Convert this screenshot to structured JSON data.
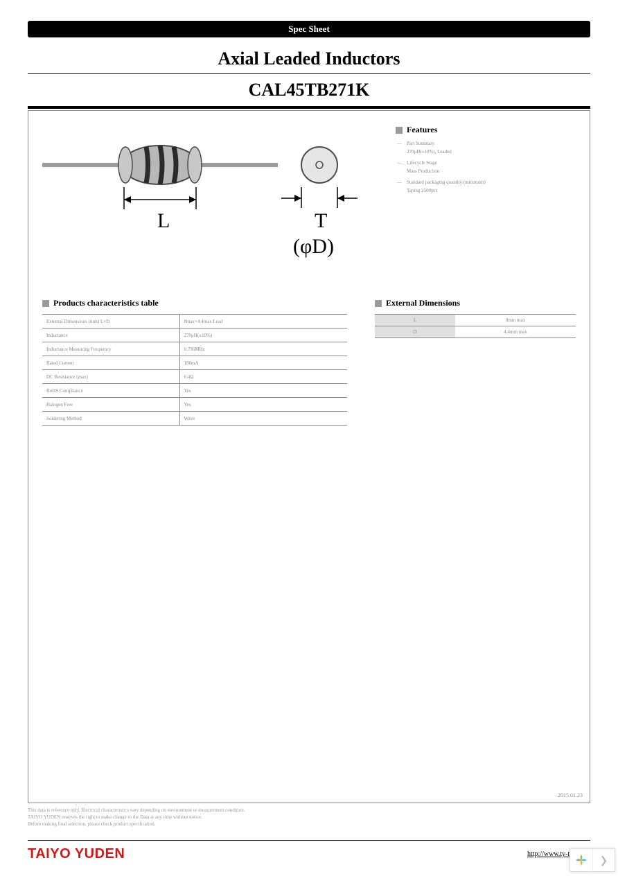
{
  "header": {
    "banner": "Spec Sheet",
    "title_line1": "Axial Leaded Inductors",
    "title_line2": "CAL45TB271K"
  },
  "diagram": {
    "label_L": "L",
    "label_T": "T",
    "label_phiD": "(φD)",
    "lead_color": "#9a9a9a",
    "body_fill": "#b8b8b8",
    "body_stroke": "#4a4a4a",
    "band_color": "#2a2a2a",
    "circle_stroke": "#4a4a4a",
    "circle_fill": "#e6e6e6"
  },
  "features": {
    "heading": "Features",
    "items": [
      {
        "label": "Part Summary",
        "value": "270μH(±10%), Leaded"
      },
      {
        "label": "Lifecycle Stage",
        "value": "Mass Production"
      },
      {
        "label": "Standard packaging quantity (minimum)",
        "value": "Taping 2500pcs"
      }
    ]
  },
  "characteristics": {
    "heading": "Products characteristics table",
    "rows": [
      [
        "External Dimensions (mm) L×D",
        "8max×4.4max Lead"
      ],
      [
        "Inductance",
        "270μH(±10%)"
      ],
      [
        "Inductance Measuring Frequency",
        "0.796MHz"
      ],
      [
        "Rated Current",
        "180mA"
      ],
      [
        "DC Resistance (max)",
        "6.4Ω"
      ],
      [
        "RoHS Compliance",
        "Yes"
      ],
      [
        "Halogen Free",
        "Yes"
      ],
      [
        "Soldering Method",
        "Wave"
      ]
    ]
  },
  "external_dimensions": {
    "heading": "External Dimensions",
    "rows": [
      [
        "L",
        "8mm max"
      ],
      [
        "D",
        "4.4mm max"
      ]
    ]
  },
  "date": "2015.01.23",
  "disclaimer": [
    "This data is reference only. Electrical characteristics vary depending on environment or measurement condition.",
    "TAIYO YUDEN reserves the right to make change to the Data at any time without notice.",
    "Before making final selection, please check product specification."
  ],
  "footer": {
    "brand": "TAIYO YUDEN",
    "url": "http://www.ty-top.com"
  },
  "nav": {
    "logo_colors": [
      "#8cc63f",
      "#4db6e2",
      "#f7b733",
      "#9a9a9a"
    ]
  }
}
